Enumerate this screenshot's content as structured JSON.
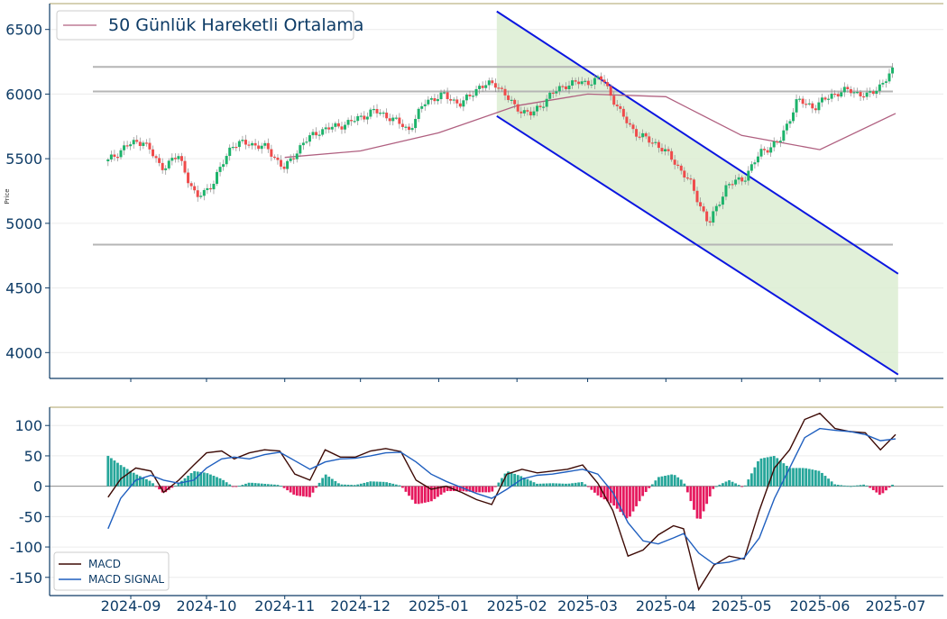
{
  "chart_data": [
    {
      "type": "candlestick",
      "panel": "price",
      "ylabel": "Price",
      "ylim": [
        3800,
        6700
      ],
      "y_ticks": [
        4000,
        4500,
        5000,
        5500,
        6000,
        6500
      ],
      "x_tick_labels": [
        "2024-09",
        "2024-10",
        "2024-11",
        "2024-12",
        "2025-01",
        "2025-02",
        "2025-03",
        "2025-04",
        "2025-05",
        "2025-06",
        "2025-07"
      ],
      "legend": {
        "position": "top-left",
        "entries": [
          "50 Günlük Hareketli Ortalama"
        ]
      },
      "horizontal_levels": [
        6210,
        6020,
        4835
      ],
      "channel": {
        "start_date": "2025-01-24",
        "end_date": "2025-07-02",
        "upper": [
          6640,
          4610
        ],
        "lower": [
          5830,
          3830
        ]
      },
      "close_series": {
        "dates": [
          "2024-08-23",
          "2024-08-30",
          "2024-09-06",
          "2024-09-13",
          "2024-09-20",
          "2024-09-27",
          "2024-10-04",
          "2024-10-11",
          "2024-10-18",
          "2024-10-25",
          "2024-11-01",
          "2024-11-08",
          "2024-11-15",
          "2024-11-22",
          "2024-11-29",
          "2024-12-06",
          "2024-12-13",
          "2024-12-20",
          "2024-12-27",
          "2025-01-03",
          "2025-01-10",
          "2025-01-17",
          "2025-01-24",
          "2025-01-31",
          "2025-02-07",
          "2025-02-14",
          "2025-02-21",
          "2025-02-28",
          "2025-03-07",
          "2025-03-14",
          "2025-03-21",
          "2025-03-28",
          "2025-04-04",
          "2025-04-11",
          "2025-04-18",
          "2025-04-25",
          "2025-05-02",
          "2025-05-09",
          "2025-05-16",
          "2025-05-23",
          "2025-05-30",
          "2025-06-06",
          "2025-06-13",
          "2025-06-20",
          "2025-06-27",
          "2025-07-01"
        ],
        "values": [
          5480,
          5600,
          5640,
          5430,
          5520,
          5190,
          5320,
          5610,
          5620,
          5580,
          5420,
          5620,
          5720,
          5750,
          5800,
          5870,
          5820,
          5720,
          5950,
          5990,
          5920,
          6060,
          6080,
          5900,
          5840,
          5990,
          6080,
          6090,
          6120,
          5850,
          5680,
          5620,
          5490,
          5300,
          4990,
          5290,
          5350,
          5560,
          5630,
          5950,
          5900,
          6000,
          6030,
          5980,
          6110,
          6200
        ]
      },
      "ma50": {
        "dates": [
          "2024-11-01",
          "2024-12-01",
          "2025-01-01",
          "2025-02-01",
          "2025-03-01",
          "2025-04-01",
          "2025-05-01",
          "2025-06-01",
          "2025-07-01"
        ],
        "values": [
          5510,
          5560,
          5700,
          5910,
          6000,
          5980,
          5680,
          5570,
          5850
        ]
      }
    },
    {
      "type": "line",
      "panel": "macd",
      "ylim": [
        -180,
        130
      ],
      "y_ticks": [
        -150,
        -100,
        -50,
        0,
        50,
        100
      ],
      "x_tick_labels": [
        "2024-09",
        "2024-10",
        "2024-11",
        "2024-12",
        "2025-01",
        "2025-02",
        "2025-03",
        "2025-04",
        "2025-05",
        "2025-06",
        "2025-07"
      ],
      "legend": {
        "position": "bottom-left"
      },
      "series": [
        {
          "name": "MACD",
          "color": "#3d0a05",
          "dates": [
            "2024-08-23",
            "2024-08-28",
            "2024-09-03",
            "2024-09-09",
            "2024-09-14",
            "2024-09-20",
            "2024-09-26",
            "2024-10-01",
            "2024-10-07",
            "2024-10-12",
            "2024-10-18",
            "2024-10-24",
            "2024-10-30",
            "2024-11-05",
            "2024-11-11",
            "2024-11-17",
            "2024-11-23",
            "2024-11-29",
            "2024-12-05",
            "2024-12-11",
            "2024-12-17",
            "2024-12-23",
            "2024-12-29",
            "2025-01-04",
            "2025-01-10",
            "2025-01-16",
            "2025-01-22",
            "2025-01-28",
            "2025-02-03",
            "2025-02-09",
            "2025-02-15",
            "2025-02-21",
            "2025-02-27",
            "2025-03-05",
            "2025-03-11",
            "2025-03-17",
            "2025-03-23",
            "2025-03-29",
            "2025-04-04",
            "2025-04-08",
            "2025-04-14",
            "2025-04-20",
            "2025-04-26",
            "2025-05-02",
            "2025-05-08",
            "2025-05-14",
            "2025-05-20",
            "2025-05-26",
            "2025-06-01",
            "2025-06-07",
            "2025-06-13",
            "2025-06-19",
            "2025-06-25",
            "2025-07-01"
          ],
          "values": [
            -18,
            12,
            30,
            25,
            -10,
            10,
            35,
            55,
            58,
            45,
            55,
            60,
            58,
            20,
            10,
            60,
            48,
            48,
            58,
            62,
            57,
            10,
            -5,
            0,
            -10,
            -22,
            -30,
            20,
            28,
            22,
            25,
            28,
            35,
            5,
            -40,
            -115,
            -105,
            -80,
            -65,
            -70,
            -170,
            -130,
            -115,
            -120,
            -40,
            30,
            60,
            110,
            120,
            95,
            90,
            88,
            60,
            85
          ]
        },
        {
          "name": "MACD SIGNAL",
          "color": "#1f5fbf",
          "dates": [
            "2024-08-23",
            "2024-08-28",
            "2024-09-03",
            "2024-09-09",
            "2024-09-14",
            "2024-09-20",
            "2024-09-26",
            "2024-10-01",
            "2024-10-07",
            "2024-10-12",
            "2024-10-18",
            "2024-10-24",
            "2024-10-30",
            "2024-11-05",
            "2024-11-11",
            "2024-11-17",
            "2024-11-23",
            "2024-11-29",
            "2024-12-05",
            "2024-12-11",
            "2024-12-17",
            "2024-12-23",
            "2024-12-29",
            "2025-01-04",
            "2025-01-10",
            "2025-01-16",
            "2025-01-22",
            "2025-01-28",
            "2025-02-03",
            "2025-02-09",
            "2025-02-15",
            "2025-02-21",
            "2025-02-27",
            "2025-03-05",
            "2025-03-11",
            "2025-03-17",
            "2025-03-23",
            "2025-03-29",
            "2025-04-04",
            "2025-04-08",
            "2025-04-14",
            "2025-04-20",
            "2025-04-26",
            "2025-05-02",
            "2025-05-08",
            "2025-05-14",
            "2025-05-20",
            "2025-05-26",
            "2025-06-01",
            "2025-06-07",
            "2025-06-13",
            "2025-06-19",
            "2025-06-25",
            "2025-07-01"
          ],
          "values": [
            -70,
            -20,
            10,
            18,
            10,
            5,
            10,
            30,
            45,
            48,
            45,
            52,
            56,
            42,
            28,
            40,
            45,
            46,
            50,
            55,
            56,
            40,
            20,
            8,
            -2,
            -12,
            -20,
            -5,
            12,
            18,
            20,
            24,
            28,
            20,
            -10,
            -60,
            -90,
            -95,
            -85,
            -78,
            -110,
            -128,
            -125,
            -118,
            -85,
            -20,
            30,
            80,
            95,
            92,
            90,
            85,
            75,
            78
          ]
        }
      ],
      "histogram": {
        "dates": [
          "2024-08-23",
          "2024-08-28",
          "2024-09-03",
          "2024-09-09",
          "2024-09-14",
          "2024-09-20",
          "2024-09-26",
          "2024-10-01",
          "2024-10-07",
          "2024-10-12",
          "2024-10-18",
          "2024-10-24",
          "2024-10-30",
          "2024-11-05",
          "2024-11-11",
          "2024-11-17",
          "2024-11-23",
          "2024-11-29",
          "2024-12-05",
          "2024-12-11",
          "2024-12-17",
          "2024-12-23",
          "2024-12-29",
          "2025-01-04",
          "2025-01-10",
          "2025-01-16",
          "2025-01-22",
          "2025-01-28",
          "2025-02-03",
          "2025-02-09",
          "2025-02-15",
          "2025-02-21",
          "2025-02-27",
          "2025-03-05",
          "2025-03-11",
          "2025-03-17",
          "2025-03-23",
          "2025-03-29",
          "2025-04-04",
          "2025-04-08",
          "2025-04-14",
          "2025-04-20",
          "2025-04-26",
          "2025-05-02",
          "2025-05-08",
          "2025-05-14",
          "2025-05-20",
          "2025-05-26",
          "2025-06-01",
          "2025-06-07",
          "2025-06-13",
          "2025-06-19",
          "2025-06-25",
          "2025-07-01"
        ],
        "values": [
          50,
          35,
          20,
          8,
          -12,
          5,
          25,
          22,
          12,
          -2,
          6,
          4,
          2,
          -15,
          -18,
          20,
          3,
          2,
          8,
          7,
          1,
          -30,
          -25,
          -8,
          -8,
          -10,
          -10,
          25,
          16,
          4,
          5,
          4,
          7,
          -15,
          -30,
          -55,
          -15,
          15,
          20,
          8,
          -60,
          -2,
          10,
          -2,
          45,
          50,
          30,
          30,
          25,
          3,
          0,
          3,
          -15,
          7
        ]
      }
    }
  ]
}
